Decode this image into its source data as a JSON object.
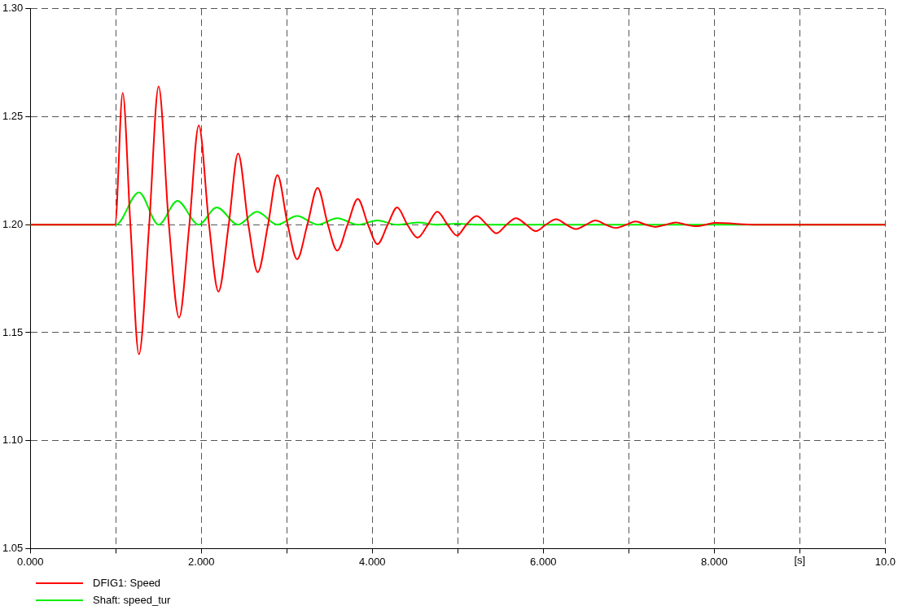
{
  "chart_data": {
    "type": "line",
    "xlabel": "[s]",
    "xlim": [
      0,
      10
    ],
    "ylim": [
      1.05,
      1.3
    ],
    "xticks": [
      {
        "value": 0,
        "label": "0.000"
      },
      {
        "value": 1,
        "label": null
      },
      {
        "value": 2,
        "label": "2.000"
      },
      {
        "value": 3,
        "label": null
      },
      {
        "value": 4,
        "label": "4.000"
      },
      {
        "value": 5,
        "label": null
      },
      {
        "value": 6,
        "label": "6.000"
      },
      {
        "value": 7,
        "label": null
      },
      {
        "value": 8,
        "label": "8.000"
      },
      {
        "value": 9,
        "label": null
      },
      {
        "value": 10,
        "label": "10.0"
      }
    ],
    "yticks": [
      1.05,
      {
        "value": 1.1,
        "label": "1.10"
      },
      1.15,
      {
        "value": 1.2,
        "label": "1.20"
      },
      1.25,
      {
        "value": 1.3,
        "label": "1.30"
      }
    ],
    "grid": true,
    "legend": "bottom left",
    "marker": "none",
    "line_style": "solid",
    "series": [
      {
        "name": "DFIG1: Speed",
        "color": "#ff0000",
        "x": [
          0,
          0.99,
          1.08,
          1.17,
          1.27,
          1.39,
          1.5,
          1.62,
          1.74,
          1.86,
          1.97,
          2.09,
          2.2,
          2.32,
          2.43,
          2.55,
          2.66,
          2.78,
          2.89,
          3.01,
          3.12,
          3.24,
          3.36,
          3.48,
          3.59,
          3.71,
          3.83,
          3.95,
          4.06,
          4.18,
          4.29,
          4.41,
          4.53,
          4.65,
          4.76,
          4.88,
          4.99,
          5.1,
          5.22,
          5.34,
          5.45,
          5.57,
          5.68,
          5.8,
          5.91,
          6.03,
          6.15,
          6.27,
          6.38,
          6.5,
          6.61,
          6.73,
          6.85,
          6.97,
          7.08,
          7.2,
          7.31,
          7.43,
          7.55,
          7.67,
          7.78,
          7.9,
          8.01,
          8.5,
          9,
          10
        ],
        "values": [
          1.2,
          1.2,
          1.261,
          1.2,
          1.14,
          1.2,
          1.264,
          1.2,
          1.157,
          1.2,
          1.246,
          1.2,
          1.169,
          1.2,
          1.233,
          1.2,
          1.178,
          1.2,
          1.223,
          1.2,
          1.184,
          1.2,
          1.217,
          1.2,
          1.188,
          1.2,
          1.212,
          1.2,
          1.191,
          1.2,
          1.208,
          1.2,
          1.194,
          1.2,
          1.206,
          1.2,
          1.195,
          1.2,
          1.204,
          1.2,
          1.196,
          1.2,
          1.203,
          1.2,
          1.197,
          1.2,
          1.2025,
          1.2,
          1.198,
          1.2,
          1.202,
          1.2,
          1.1985,
          1.2,
          1.2015,
          1.2,
          1.199,
          1.2,
          1.201,
          1.2,
          1.1993,
          1.2,
          1.2008,
          1.2,
          1.2,
          1.2
        ]
      },
      {
        "name": "Shaft: speed_tur",
        "color": "#00ee00",
        "x": [
          0,
          1.0,
          1.27,
          1.5,
          1.72,
          1.97,
          2.18,
          2.43,
          2.65,
          2.89,
          3.12,
          3.36,
          3.59,
          3.83,
          4.06,
          4.29,
          4.53,
          4.76,
          4.99,
          5.22,
          10
        ],
        "values": [
          1.2,
          1.2,
          1.215,
          1.2,
          1.211,
          1.2,
          1.208,
          1.2,
          1.206,
          1.2,
          1.204,
          1.2,
          1.203,
          1.2,
          1.202,
          1.2,
          1.201,
          1.2,
          1.2005,
          1.2,
          1.2
        ]
      }
    ]
  }
}
